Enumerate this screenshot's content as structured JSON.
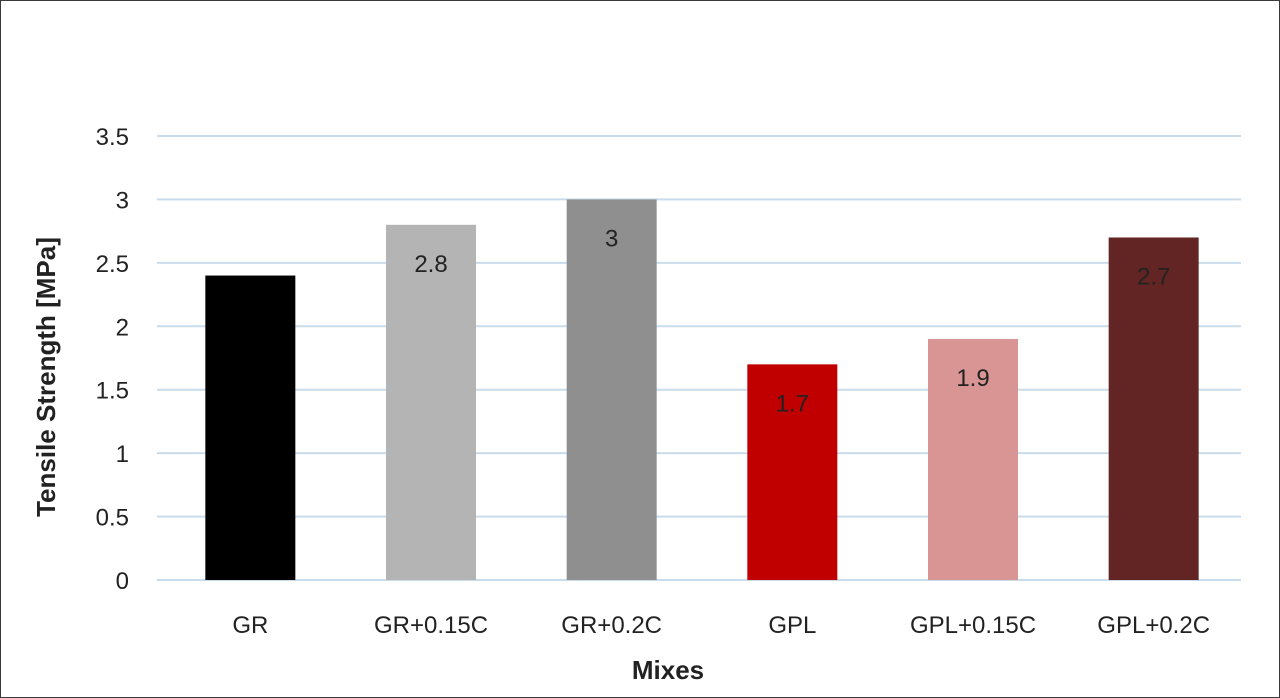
{
  "chart_data": {
    "type": "bar",
    "title": "",
    "xlabel": "Mixes",
    "ylabel": "Tensile Strength [MPa]",
    "categories": [
      "GR",
      "GR+0.15C",
      "GR+0.2C",
      "GPL",
      "GPL+0.15C",
      "GPL+0.2C"
    ],
    "values": [
      2.4,
      2.8,
      3,
      1.7,
      1.9,
      2.7
    ],
    "data_labels": [
      "",
      "2.8",
      "3",
      "1.7",
      "1.9",
      "2.7"
    ],
    "bar_colors": [
      "#000000",
      "#b4b4b4",
      "#8f8f8f",
      "#c00000",
      "#d99594",
      "#632523"
    ],
    "yticks": [
      "0",
      "0.5",
      "1",
      "1.5",
      "2",
      "2.5",
      "3",
      "3.5"
    ],
    "ylim": [
      0,
      3.5
    ],
    "grid": true,
    "gridline_color": "#c9dcec",
    "legend": "none"
  }
}
